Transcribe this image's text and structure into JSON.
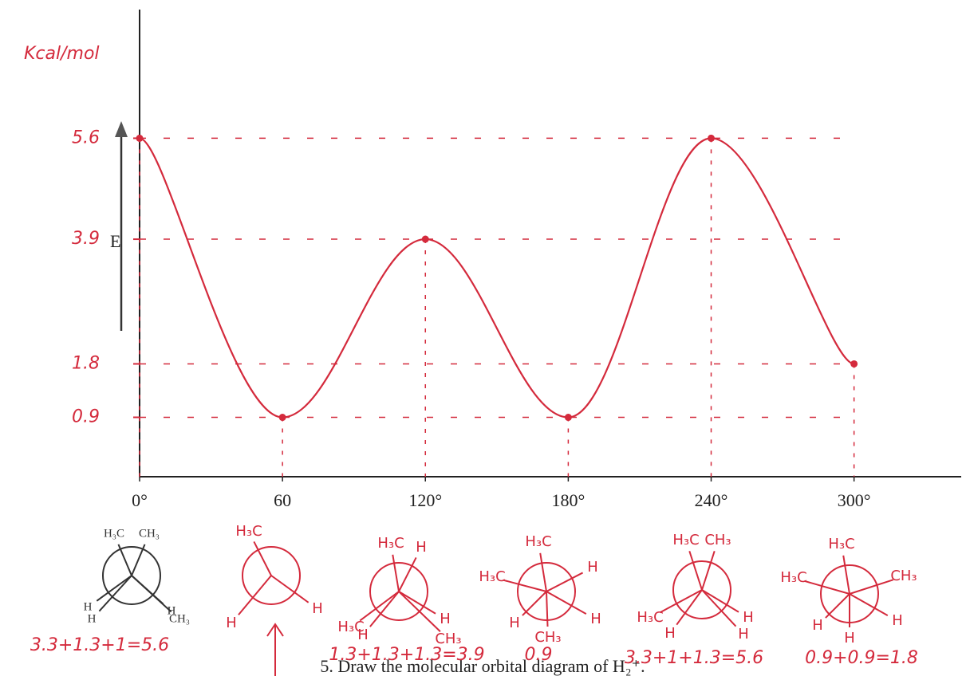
{
  "chart_data": {
    "type": "line",
    "y_label": "Kcal/mol",
    "axis_arrow_label": "E",
    "x": [
      0,
      60,
      120,
      180,
      240,
      300
    ],
    "values": [
      5.6,
      0.9,
      3.9,
      0.9,
      5.6,
      1.8
    ],
    "color": "#d42a3c",
    "xlim": [
      0,
      345
    ],
    "ylim": [
      -0.1,
      7.7
    ],
    "xticks": [
      {
        "value": 0,
        "label": "0°"
      },
      60,
      {
        "value": 120,
        "label": "120°"
      },
      {
        "value": 180,
        "label": "180°"
      },
      {
        "value": 240,
        "label": "240°"
      },
      {
        "value": 300,
        "label": "300°"
      }
    ],
    "yticks": [
      0.9,
      1.8,
      3.9,
      5.6
    ],
    "grid": true,
    "newman": [
      {
        "labels": [
          "H₃C",
          "CH₃",
          "H",
          "H",
          "H",
          "CH₃"
        ]
      },
      {
        "labels": [
          "H₃C",
          "H",
          "H"
        ]
      },
      {
        "labels": [
          "H₃C",
          "H",
          "H₃C",
          "H",
          "H",
          "CH₃"
        ]
      },
      {
        "labels": [
          "H₃C",
          "H₃C",
          "H",
          "H",
          "H",
          "CH₃"
        ]
      },
      {
        "labels": [
          "H₃C",
          "CH₃",
          "H₃C",
          "H",
          "H",
          "H"
        ]
      },
      {
        "labels": [
          "H₃C",
          "H₃C",
          "CH₃",
          "H",
          "H",
          "H"
        ]
      }
    ],
    "annotations": [
      "3.3+1.3+1=5.6",
      "1.3+1.3+1.3=3.9",
      "0.9",
      "3.3+1+1.3=5.6",
      "0.9+0.9=1.8"
    ],
    "footer": "5. Draw the molecular orbital diagram of H₂⁺."
  }
}
